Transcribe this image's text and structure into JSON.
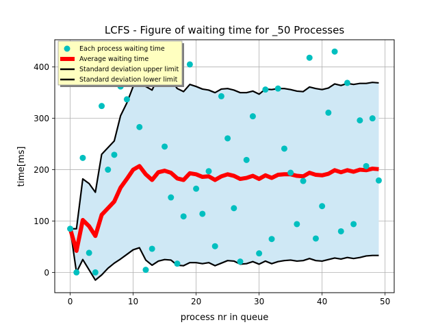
{
  "chart_data": {
    "type": "scatter",
    "title": "LCFS - Figure of waiting time for _50 Processes",
    "xlabel": "process nr in queue",
    "ylabel": "time[ms]",
    "xlim": [
      -2.45,
      51.45
    ],
    "ylim": [
      -39.5,
      453
    ],
    "xticks": [
      0,
      10,
      20,
      30,
      40,
      50
    ],
    "yticks": [
      0,
      100,
      200,
      300,
      400
    ],
    "grid": true,
    "legend_position": "top-left",
    "colors": {
      "points": "#00bfbf",
      "average": "#ff0000",
      "limits": "#000000",
      "band": "#cfe8f5",
      "legend_bg": "#ffffc0"
    },
    "series": [
      {
        "name": "Each process waiting time",
        "kind": "scatter",
        "x": [
          0,
          1,
          2,
          3,
          4,
          5,
          6,
          7,
          8,
          9,
          10,
          11,
          12,
          13,
          14,
          15,
          16,
          17,
          18,
          19,
          20,
          21,
          22,
          23,
          24,
          25,
          26,
          27,
          28,
          29,
          30,
          31,
          32,
          33,
          34,
          35,
          36,
          37,
          38,
          39,
          40,
          41,
          42,
          43,
          44,
          45,
          46,
          47,
          48,
          49
        ],
        "y": [
          85,
          0,
          223,
          38,
          0,
          324,
          200,
          229,
          362,
          337,
          368,
          283,
          5,
          46,
          368,
          245,
          146,
          17,
          109,
          405,
          163,
          114,
          197,
          51,
          343,
          261,
          125,
          21,
          219,
          304,
          37,
          356,
          65,
          358,
          241,
          194,
          94,
          178,
          418,
          66,
          129,
          311,
          430,
          80,
          369,
          94,
          296,
          207,
          300,
          179
        ]
      },
      {
        "name": "Average waiting time",
        "kind": "line",
        "x": [
          0,
          1,
          2,
          3,
          4,
          5,
          6,
          7,
          8,
          9,
          10,
          11,
          12,
          13,
          14,
          15,
          16,
          17,
          18,
          19,
          20,
          21,
          22,
          23,
          24,
          25,
          26,
          27,
          28,
          29,
          30,
          31,
          32,
          33,
          34,
          35,
          36,
          37,
          38,
          39,
          40,
          41,
          42,
          43,
          44,
          45,
          46,
          47,
          48,
          49
        ],
        "y": [
          85,
          42,
          102,
          90,
          71,
          112,
          125,
          138,
          165,
          182,
          200,
          207,
          191,
          180,
          195,
          198,
          194,
          183,
          180,
          193,
          191,
          186,
          187,
          180,
          187,
          191,
          188,
          182,
          184,
          188,
          182,
          189,
          184,
          190,
          191,
          191,
          188,
          187,
          194,
          190,
          189,
          192,
          199,
          195,
          199,
          196,
          200,
          199,
          202,
          201
        ]
      },
      {
        "name": "Standard deviation upper limit",
        "kind": "line",
        "x": [
          0,
          1,
          2,
          3,
          4,
          5,
          6,
          7,
          8,
          9,
          10,
          11,
          12,
          13,
          14,
          15,
          16,
          17,
          18,
          19,
          20,
          21,
          22,
          23,
          24,
          25,
          26,
          27,
          28,
          29,
          30,
          31,
          32,
          33,
          34,
          35,
          36,
          37,
          38,
          39,
          40,
          41,
          42,
          43,
          44,
          45,
          46,
          47,
          48,
          49
        ],
        "y": [
          85,
          85,
          182,
          173,
          156,
          230,
          243,
          256,
          305,
          330,
          362,
          372,
          362,
          355,
          380,
          382,
          375,
          358,
          352,
          366,
          362,
          357,
          355,
          350,
          357,
          358,
          355,
          350,
          350,
          353,
          347,
          357,
          356,
          358,
          358,
          356,
          353,
          352,
          361,
          358,
          356,
          359,
          367,
          364,
          368,
          366,
          368,
          368,
          370,
          369
        ]
      },
      {
        "name": "Standard deviation lower limit",
        "kind": "line",
        "x": [
          0,
          1,
          2,
          3,
          4,
          5,
          6,
          7,
          8,
          9,
          10,
          11,
          12,
          13,
          14,
          15,
          16,
          17,
          18,
          19,
          20,
          21,
          22,
          23,
          24,
          25,
          26,
          27,
          28,
          29,
          30,
          31,
          32,
          33,
          34,
          35,
          36,
          37,
          38,
          39,
          40,
          41,
          42,
          43,
          44,
          45,
          46,
          47,
          48,
          49
        ],
        "y": [
          85,
          0,
          25,
          5,
          -15,
          -5,
          8,
          18,
          26,
          35,
          44,
          48,
          24,
          14,
          22,
          25,
          24,
          14,
          13,
          19,
          19,
          17,
          19,
          13,
          18,
          23,
          22,
          16,
          17,
          21,
          16,
          22,
          17,
          21,
          23,
          24,
          22,
          23,
          27,
          23,
          22,
          25,
          28,
          26,
          29,
          27,
          29,
          32,
          33,
          33
        ]
      }
    ]
  }
}
